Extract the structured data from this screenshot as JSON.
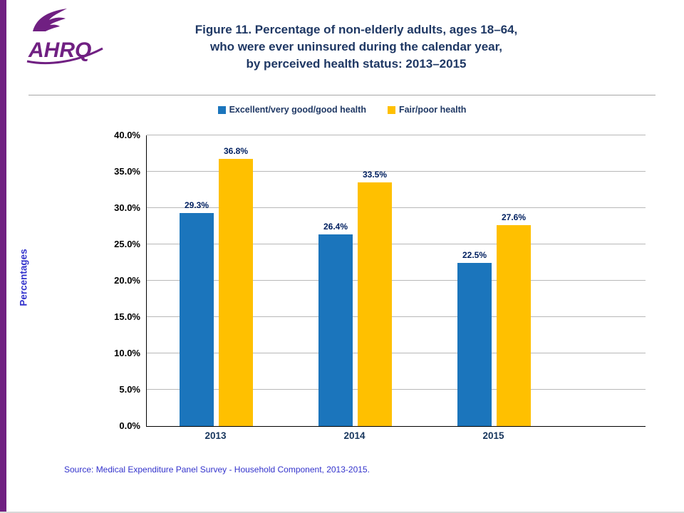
{
  "header": {
    "title_lines": [
      "Figure 11. Percentage of non-elderly adults, ages 18–64,",
      "who were ever uninsured during the calendar year,",
      "by perceived health status: 2013–2015"
    ]
  },
  "logo": {
    "wordmark": "AHRQ"
  },
  "chart_data": {
    "type": "bar",
    "title": "Figure 11. Percentage of non-elderly adults, ages 18–64, who were ever uninsured during the calendar year, by perceived health status: 2013–2015",
    "categories": [
      "2013",
      "2014",
      "2015"
    ],
    "series": [
      {
        "name": "Excellent/very good/good health",
        "color": "#1B75BC",
        "values": [
          29.3,
          26.4,
          22.5
        ],
        "labels": [
          "29.3%",
          "26.4%",
          "22.5%"
        ]
      },
      {
        "name": "Fair/poor health",
        "color": "#FFC000",
        "values": [
          36.8,
          33.5,
          27.6
        ],
        "labels": [
          "36.8%",
          "33.5%",
          "27.6%"
        ]
      }
    ],
    "xlabel": "",
    "ylabel": "Percentages",
    "ylim": [
      0,
      40
    ],
    "ytick_labels": [
      "0.0%",
      "5.0%",
      "10.0%",
      "15.0%",
      "20.0%",
      "25.0%",
      "30.0%",
      "35.0%",
      "40.0%"
    ],
    "grid": true,
    "legend_position": "top"
  },
  "footer": {
    "source": "Source: Medical Expenditure Panel Survey - Household Component, 2013-2015."
  },
  "colors": {
    "accent_purple": "#702082",
    "title_navy": "#1F3864",
    "data_label_navy": "#002060",
    "axis_text_blue": "#3333CC",
    "series_blue": "#1B75BC",
    "series_gold": "#FFC000",
    "gridline_gray": "#b8b8b8"
  }
}
